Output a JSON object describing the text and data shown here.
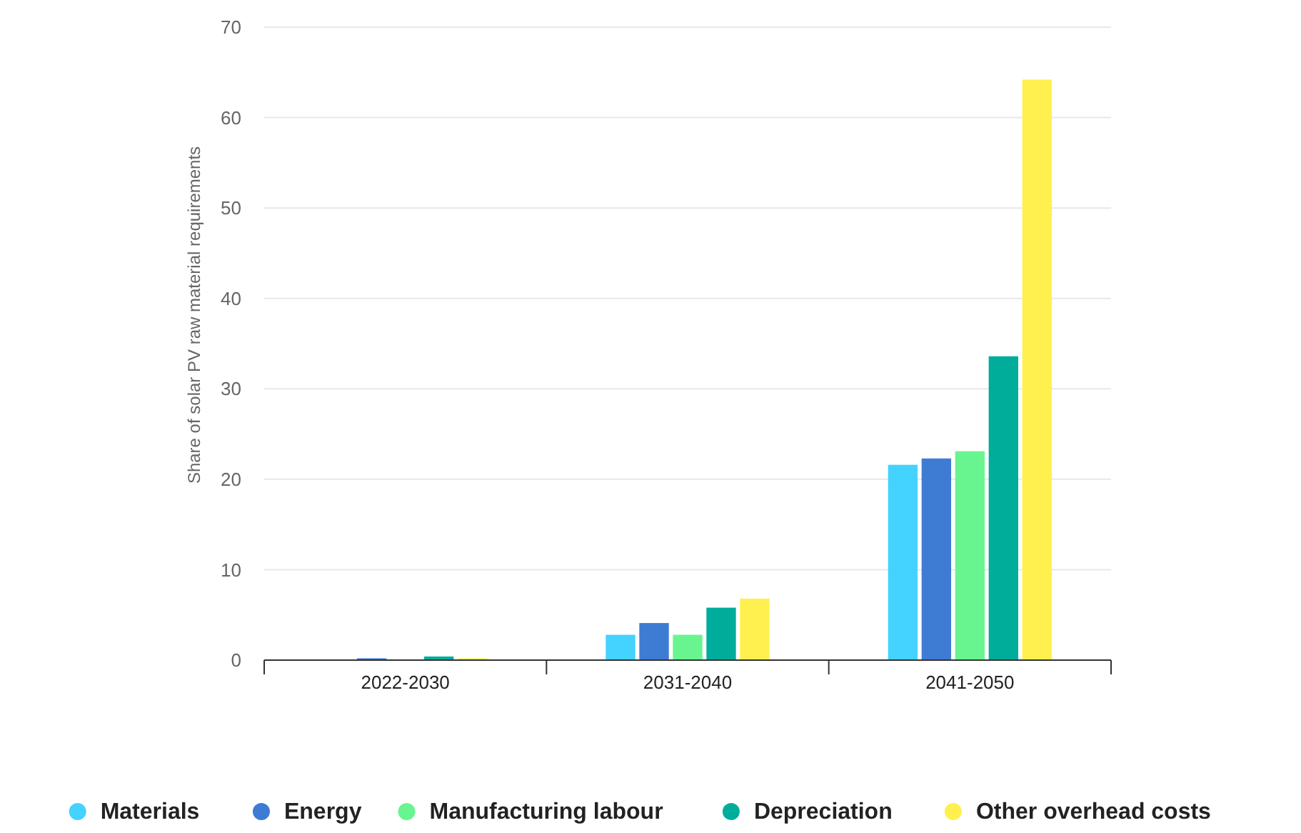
{
  "chart_data": {
    "type": "bar",
    "ylabel": "Share of solar PV raw material requirements",
    "categories": [
      "2022-2030",
      "2031-2040",
      "2041-2050"
    ],
    "series": [
      {
        "name": "Materials",
        "color": "#44d2ff",
        "values": [
          0,
          2.8,
          21.6
        ]
      },
      {
        "name": "Energy",
        "color": "#3e7bd3",
        "values": [
          0.2,
          4.1,
          22.3
        ]
      },
      {
        "name": "Manufacturing labour",
        "color": "#68f58f",
        "values": [
          0,
          2.8,
          23.1
        ]
      },
      {
        "name": "Depreciation",
        "color": "#00ad9b",
        "values": [
          0.4,
          5.8,
          33.6
        ]
      },
      {
        "name": "Other overhead costs",
        "color": "#fff050",
        "values": [
          0.2,
          6.8,
          64.2
        ]
      }
    ],
    "ylim": [
      0,
      70
    ],
    "yticks": [
      0,
      10,
      20,
      30,
      40,
      50,
      60,
      70
    ],
    "grid": "y",
    "legend": "bottom"
  }
}
